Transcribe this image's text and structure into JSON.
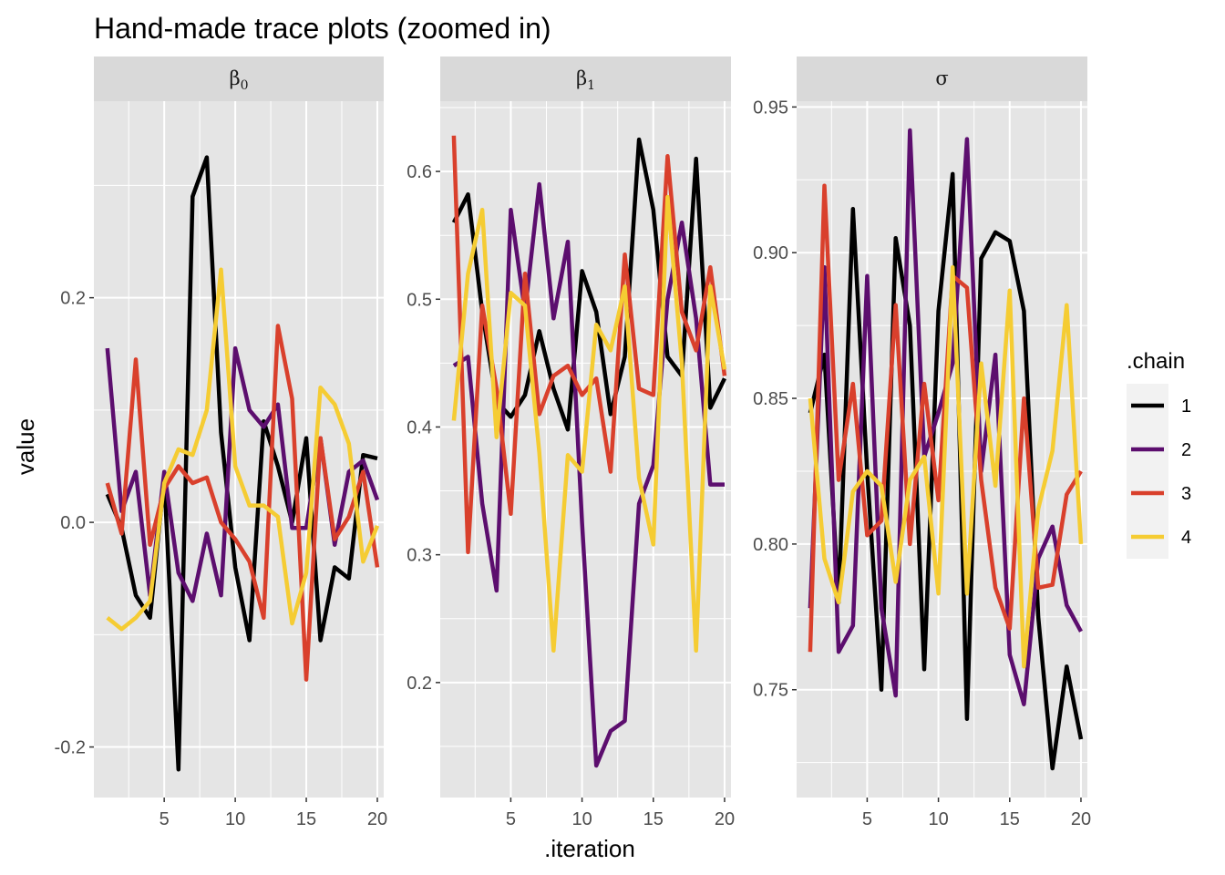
{
  "chart_data": {
    "type": "line",
    "title": "Hand-made trace plots (zoomed in)",
    "xlabel": ".iteration",
    "ylabel": "value",
    "legend": {
      "title": ".chain",
      "placement": "right",
      "entries": [
        "1",
        "2",
        "3",
        "4"
      ]
    },
    "colors": {
      "1": "#000000",
      "2": "#5c0e6e",
      "3": "#d9402c",
      "4": "#f5cc33",
      "panel_bg": "#e5e5e5",
      "strip_bg": "#d9d9d9",
      "grid": "#ffffff"
    },
    "grid": true,
    "x": [
      1,
      2,
      3,
      4,
      5,
      6,
      7,
      8,
      9,
      10,
      11,
      12,
      13,
      14,
      15,
      16,
      17,
      18,
      19,
      20
    ],
    "panels": [
      {
        "strip_label": "β",
        "strip_sub": "0",
        "xlim": [
          0.05,
          20.45
        ],
        "ylim": [
          -0.245,
          0.375
        ],
        "xticks": [
          5,
          10,
          15,
          20
        ],
        "xtick_labels": [
          "5",
          "10",
          "15",
          "20"
        ],
        "yticks": [
          -0.2,
          0.0,
          0.2
        ],
        "ytick_labels": [
          "-0.2",
          "0.0",
          "0.2"
        ],
        "series": [
          {
            "name": "1",
            "values": [
              0.025,
              -0.005,
              -0.065,
              -0.085,
              0.04,
              -0.22,
              0.29,
              0.325,
              0.08,
              -0.04,
              -0.105,
              0.09,
              0.05,
              0.0,
              0.075,
              -0.105,
              -0.04,
              -0.05,
              0.06,
              0.057
            ]
          },
          {
            "name": "2",
            "values": [
              0.155,
              0.01,
              0.045,
              -0.065,
              0.045,
              -0.045,
              -0.07,
              -0.01,
              -0.065,
              0.155,
              0.1,
              0.085,
              0.105,
              -0.005,
              -0.005,
              0.075,
              -0.02,
              0.045,
              0.055,
              0.02
            ]
          },
          {
            "name": "3",
            "values": [
              0.035,
              -0.01,
              0.145,
              -0.02,
              0.03,
              0.05,
              0.035,
              0.04,
              0.0,
              -0.015,
              -0.035,
              -0.085,
              0.175,
              0.11,
              -0.14,
              0.075,
              -0.015,
              0.005,
              0.045,
              -0.04
            ]
          },
          {
            "name": "4",
            "values": [
              -0.085,
              -0.095,
              -0.085,
              -0.07,
              0.035,
              0.065,
              0.06,
              0.1,
              0.225,
              0.05,
              0.015,
              0.015,
              0.005,
              -0.09,
              -0.045,
              0.12,
              0.105,
              0.07,
              -0.035,
              -0.003
            ]
          }
        ]
      },
      {
        "strip_label": "β",
        "strip_sub": "1",
        "xlim": [
          0.05,
          20.45
        ],
        "ylim": [
          0.11,
          0.655
        ],
        "xticks": [
          5,
          10,
          15,
          20
        ],
        "xtick_labels": [
          "5",
          "10",
          "15",
          "20"
        ],
        "yticks": [
          0.2,
          0.3,
          0.4,
          0.5,
          0.6
        ],
        "ytick_labels": [
          "0.2",
          "0.3",
          "0.4",
          "0.5",
          "0.6"
        ],
        "series": [
          {
            "name": "1",
            "values": [
              0.56,
              0.582,
              0.49,
              0.42,
              0.408,
              0.425,
              0.475,
              0.43,
              0.398,
              0.522,
              0.49,
              0.41,
              0.455,
              0.625,
              0.57,
              0.455,
              0.44,
              0.61,
              0.415,
              0.438
            ]
          },
          {
            "name": "2",
            "values": [
              0.448,
              0.455,
              0.34,
              0.272,
              0.57,
              0.49,
              0.59,
              0.485,
              0.545,
              0.325,
              0.135,
              0.162,
              0.17,
              0.34,
              0.37,
              0.5,
              0.56,
              0.485,
              0.355,
              0.355
            ]
          },
          {
            "name": "3",
            "values": [
              0.628,
              0.302,
              0.495,
              0.43,
              0.332,
              0.52,
              0.41,
              0.44,
              0.448,
              0.425,
              0.438,
              0.365,
              0.535,
              0.43,
              0.425,
              0.612,
              0.49,
              0.46,
              0.525,
              0.44
            ]
          },
          {
            "name": "4",
            "values": [
              0.405,
              0.52,
              0.57,
              0.392,
              0.505,
              0.495,
              0.38,
              0.225,
              0.378,
              0.365,
              0.48,
              0.46,
              0.51,
              0.36,
              0.308,
              0.58,
              0.45,
              0.225,
              0.51,
              0.445
            ]
          }
        ]
      },
      {
        "strip_label": "σ",
        "strip_sub": "",
        "xlim": [
          0.05,
          20.45
        ],
        "ylim": [
          0.713,
          0.952
        ],
        "xticks": [
          5,
          10,
          15,
          20
        ],
        "xtick_labels": [
          "5",
          "10",
          "15",
          "20"
        ],
        "yticks": [
          0.75,
          0.8,
          0.85,
          0.9,
          0.95
        ],
        "ytick_labels": [
          "0.75",
          "0.80",
          "0.85",
          "0.90",
          "0.95"
        ],
        "series": [
          {
            "name": "1",
            "values": [
              0.845,
              0.865,
              0.78,
              0.915,
              0.825,
              0.75,
              0.905,
              0.875,
              0.757,
              0.88,
              0.927,
              0.74,
              0.898,
              0.907,
              0.904,
              0.88,
              0.775,
              0.723,
              0.758,
              0.733
            ]
          },
          {
            "name": "2",
            "values": [
              0.778,
              0.895,
              0.763,
              0.772,
              0.892,
              0.778,
              0.748,
              0.942,
              0.83,
              0.845,
              0.862,
              0.939,
              0.825,
              0.865,
              0.762,
              0.745,
              0.795,
              0.806,
              0.779,
              0.77
            ]
          },
          {
            "name": "3",
            "values": [
              0.763,
              0.923,
              0.822,
              0.855,
              0.803,
              0.808,
              0.882,
              0.8,
              0.855,
              0.815,
              0.892,
              0.888,
              0.822,
              0.785,
              0.771,
              0.85,
              0.785,
              0.786,
              0.817,
              0.825
            ]
          },
          {
            "name": "4",
            "values": [
              0.85,
              0.795,
              0.78,
              0.818,
              0.825,
              0.82,
              0.787,
              0.822,
              0.83,
              0.783,
              0.895,
              0.783,
              0.862,
              0.82,
              0.887,
              0.758,
              0.812,
              0.832,
              0.882,
              0.8
            ]
          }
        ]
      }
    ]
  }
}
